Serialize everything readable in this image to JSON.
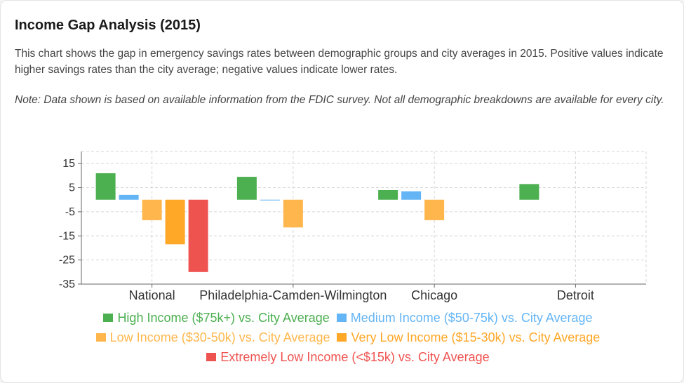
{
  "title": "Income Gap Analysis (2015)",
  "description": "This chart shows the gap in emergency savings rates between demographic groups and city averages in 2015. Positive values indicate higher savings rates than the city average; negative values indicate lower rates.",
  "note": "Note: Data shown is based on available information from the FDIC survey. Not all demographic breakdowns are available for every city.",
  "chart_data": {
    "type": "bar",
    "categories": [
      "National",
      "Philadelphia-Camden-Wilmington",
      "Chicago",
      "Detroit"
    ],
    "series": [
      {
        "name": "High Income ($75k+) vs. City Average",
        "color": "#4caf50",
        "values": [
          11,
          9.5,
          4,
          6.5
        ]
      },
      {
        "name": "Medium Income ($50-75k) vs. City Average",
        "color": "#64b5f6",
        "values": [
          2,
          0,
          3.5,
          null
        ]
      },
      {
        "name": "Low Income ($30-50k) vs. City Average",
        "color": "#ffb74d",
        "values": [
          -8.5,
          -11.5,
          -8.5,
          null
        ]
      },
      {
        "name": "Very Low Income ($15-30k) vs. City Average",
        "color": "#ffa726",
        "values": [
          -18.5,
          null,
          null,
          null
        ]
      },
      {
        "name": "Extremely Low Income (<$15k) vs. City Average",
        "color": "#ef5350",
        "values": [
          -30,
          null,
          null,
          null
        ]
      }
    ],
    "yticks": [
      15,
      5,
      -5,
      -15,
      -25,
      -35
    ],
    "ylim": [
      -35,
      20
    ],
    "grid": true,
    "legend_position": "bottom"
  }
}
